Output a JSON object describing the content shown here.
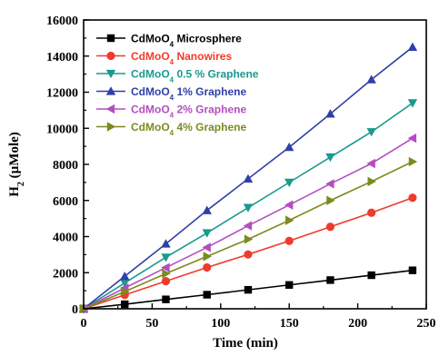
{
  "chart_data": {
    "type": "line",
    "title": "",
    "xlabel": "Time (min)",
    "ylabel_main": "H",
    "ylabel_sub": "2",
    "ylabel_rest": " (µMole)",
    "xlim": [
      0,
      250
    ],
    "ylim": [
      0,
      16000
    ],
    "xticks": [
      0,
      50,
      100,
      150,
      200,
      250
    ],
    "yticks": [
      0,
      2000,
      4000,
      6000,
      8000,
      10000,
      12000,
      14000,
      16000
    ],
    "grid": false,
    "legend_position": "top-left",
    "x": [
      0,
      30,
      60,
      90,
      120,
      150,
      180,
      210,
      240
    ],
    "series": [
      {
        "name_pre": "CdMoO",
        "name_sub": "4",
        "name_post": " Microsphere",
        "color": "#000000",
        "marker": "square",
        "values": [
          0,
          250,
          520,
          780,
          1050,
          1320,
          1590,
          1860,
          2130
        ]
      },
      {
        "name_pre": "CdMoO",
        "name_sub": "4",
        "name_post": " Nanowires",
        "color": "#ef3b2c",
        "marker": "circle",
        "values": [
          0,
          770,
          1530,
          2290,
          3010,
          3760,
          4540,
          5320,
          6150
        ]
      },
      {
        "name_pre": "CdMoO",
        "name_sub": "4",
        "name_post": " 0.5 % Graphene",
        "color": "#1a9a8e",
        "marker": "triangle-down",
        "values": [
          0,
          1430,
          2850,
          4200,
          5600,
          7000,
          8400,
          9800,
          11400
        ]
      },
      {
        "name_pre": "CdMoO",
        "name_sub": "4",
        "name_post": " 1% Graphene",
        "color": "#2f3fa8",
        "marker": "triangle-up",
        "values": [
          0,
          1800,
          3600,
          5450,
          7200,
          8950,
          10800,
          12700,
          14500
        ]
      },
      {
        "name_pre": "CdMoO",
        "name_sub": "4",
        "name_post": " 2% Graphene",
        "color": "#b44ec0",
        "marker": "triangle-left",
        "values": [
          0,
          1150,
          2280,
          3400,
          4600,
          5750,
          6920,
          8050,
          9450
        ]
      },
      {
        "name_pre": "CdMoO",
        "name_sub": "4",
        "name_post": " 4% Graphene",
        "color": "#7d8a1e",
        "marker": "triangle-right",
        "values": [
          0,
          950,
          1950,
          2900,
          3850,
          4900,
          6000,
          7050,
          8150
        ]
      }
    ]
  }
}
